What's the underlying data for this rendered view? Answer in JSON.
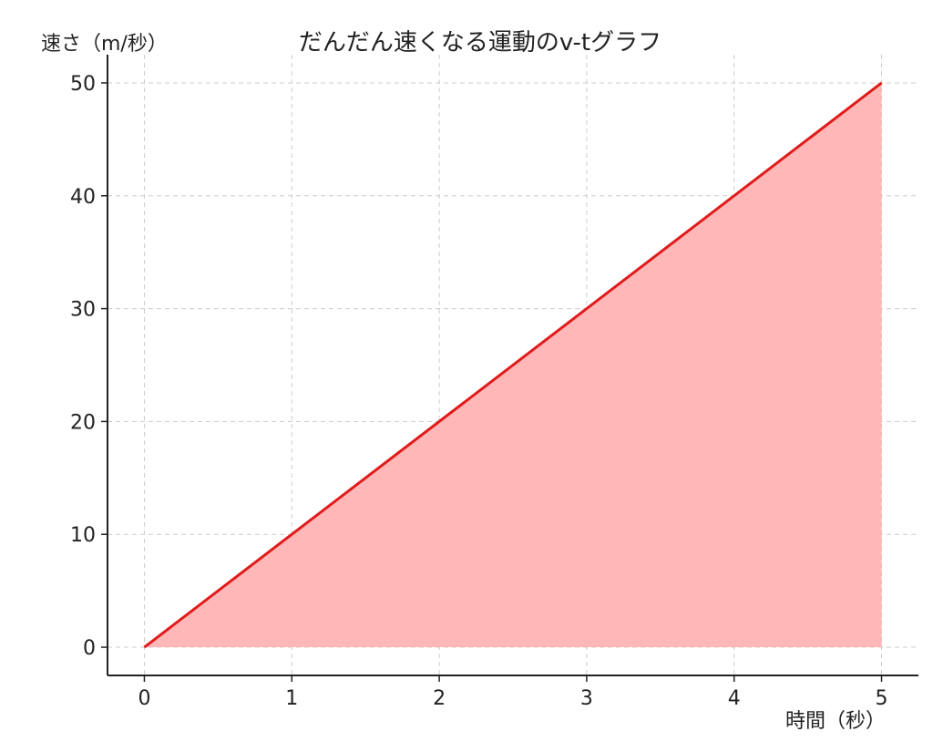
{
  "chart_data": {
    "type": "area",
    "title": "だんだん速くなる運動のv-tグラフ",
    "xlabel": "時間（秒）",
    "ylabel": "速さ（m/秒）",
    "x": [
      0,
      5
    ],
    "series": [
      {
        "values": [
          0,
          50
        ],
        "color": "#e01b1b",
        "fill_color": "#ffb3b3"
      }
    ],
    "xlim": [
      -0.25,
      5.25
    ],
    "ylim": [
      -2.5,
      52.5
    ],
    "xticks": [
      0,
      1,
      2,
      3,
      4,
      5
    ],
    "yticks": [
      0,
      10,
      20,
      30,
      40,
      50
    ],
    "grid": true
  }
}
